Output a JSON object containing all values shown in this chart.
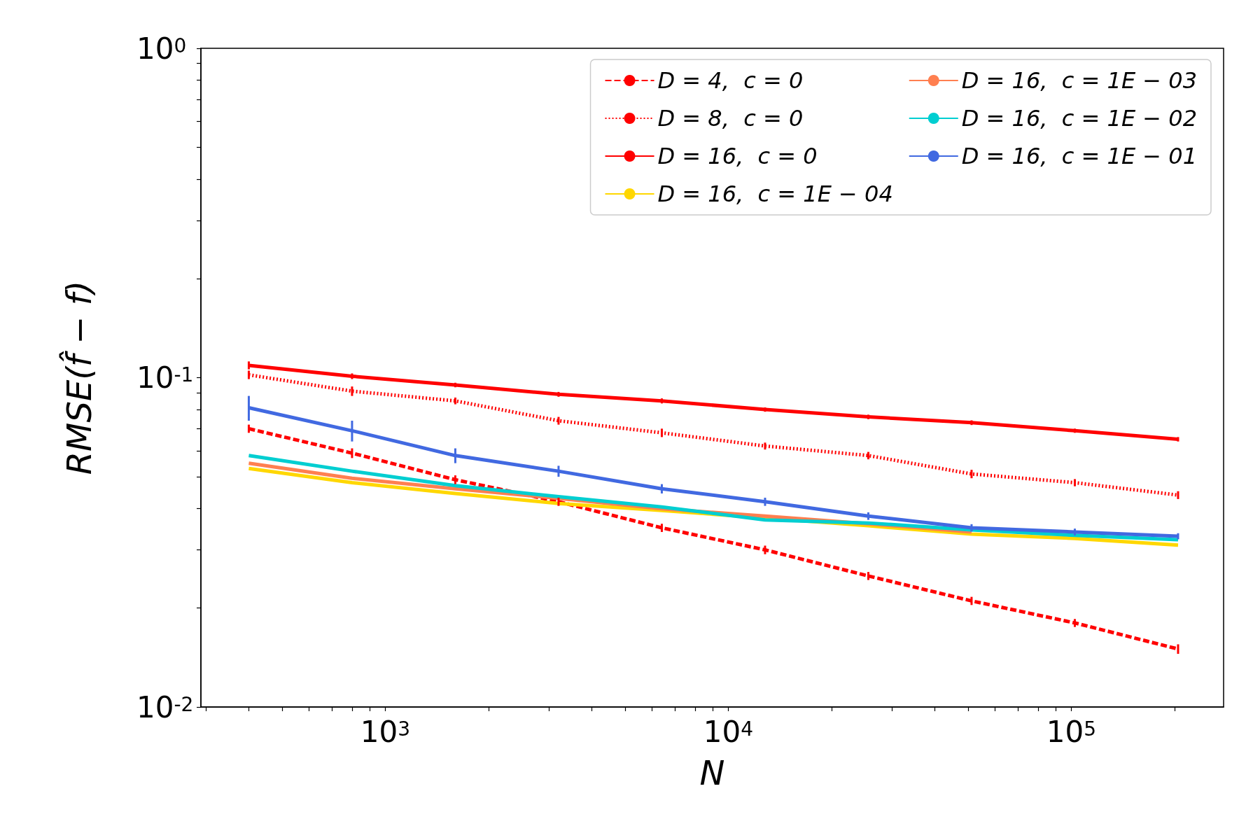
{
  "chart_data": {
    "type": "line",
    "xlabel": "N",
    "ylabel": "RMSE(f̂ − f)",
    "log": "xy",
    "grid": false,
    "legend": "top right",
    "marker": "none",
    "x": [
      400,
      800,
      1600,
      3200,
      6400,
      12800,
      25600,
      51200,
      102400,
      204800
    ],
    "xlim": [
      290,
      278000
    ],
    "ylim": [
      0.01,
      1
    ],
    "xticks": [
      {
        "value": 300,
        "label": null
      },
      {
        "value": 400,
        "label": null
      },
      {
        "value": 500,
        "label": null
      },
      {
        "value": 600,
        "label": null
      },
      {
        "value": 700,
        "label": null
      },
      {
        "value": 800,
        "label": null
      },
      {
        "value": 900,
        "label": null
      },
      {
        "value": 1000,
        "label": "10$^{3}$"
      },
      {
        "value": 2000,
        "label": null
      },
      {
        "value": 3000,
        "label": null
      },
      {
        "value": 4000,
        "label": null
      },
      {
        "value": 5000,
        "label": null
      },
      {
        "value": 6000,
        "label": null
      },
      {
        "value": 7000,
        "label": null
      },
      {
        "value": 8000,
        "label": null
      },
      {
        "value": 9000,
        "label": null
      },
      {
        "value": 10000,
        "label": "10$^{4}$"
      },
      {
        "value": 20000,
        "label": null
      },
      {
        "value": 30000,
        "label": null
      },
      {
        "value": 40000,
        "label": null
      },
      {
        "value": 50000,
        "label": null
      },
      {
        "value": 60000,
        "label": null
      },
      {
        "value": 70000,
        "label": null
      },
      {
        "value": 80000,
        "label": null
      },
      {
        "value": 90000,
        "label": null
      },
      {
        "value": 100000,
        "label": "10$^{5}$"
      },
      {
        "value": 200000,
        "label": null
      }
    ],
    "yticks": [
      {
        "value": 0.01,
        "label": "10$^{-2}$"
      },
      {
        "value": 0.02,
        "label": null
      },
      {
        "value": 0.03,
        "label": null
      },
      {
        "value": 0.04,
        "label": null
      },
      {
        "value": 0.05,
        "label": null
      },
      {
        "value": 0.06,
        "label": null
      },
      {
        "value": 0.07,
        "label": null
      },
      {
        "value": 0.08,
        "label": null
      },
      {
        "value": 0.09,
        "label": null
      },
      {
        "value": 0.1,
        "label": "10$^{-1}$"
      },
      {
        "value": 0.2,
        "label": null
      },
      {
        "value": 0.3,
        "label": null
      },
      {
        "value": 0.4,
        "label": null
      },
      {
        "value": 0.5,
        "label": null
      },
      {
        "value": 0.6,
        "label": null
      },
      {
        "value": 0.7,
        "label": null
      },
      {
        "value": 0.8,
        "label": null
      },
      {
        "value": 0.9,
        "label": null
      },
      {
        "value": 1,
        "label": "10$^{0}$"
      }
    ],
    "series": [
      {
        "name": "D = 4,  c = 0",
        "color": "#ff0000",
        "line_style": "dashed",
        "values": [
          0.07,
          0.059,
          0.049,
          0.042,
          0.035,
          0.03,
          0.025,
          0.021,
          0.018,
          0.015
        ],
        "errors": [
          0.002,
          0.002,
          0.0015,
          0.0012,
          0.001,
          0.0009,
          0.0007,
          0.0006,
          0.0005,
          0.0005
        ]
      },
      {
        "name": "D = 8,  c = 0",
        "color": "#ff0000",
        "line_style": "dotted",
        "values": [
          0.102,
          0.091,
          0.085,
          0.074,
          0.068,
          0.062,
          0.058,
          0.051,
          0.048,
          0.044
        ],
        "errors": [
          0.003,
          0.003,
          0.002,
          0.002,
          0.002,
          0.0015,
          0.0015,
          0.0015,
          0.0012,
          0.0012
        ]
      },
      {
        "name": "D = 16,  c = 0",
        "color": "#ff0000",
        "line_style": "solid",
        "values": [
          0.109,
          0.101,
          0.095,
          0.089,
          0.085,
          0.08,
          0.076,
          0.073,
          0.069,
          0.065
        ],
        "errors": [
          0.003,
          0.002,
          0.0015,
          0.0015,
          0.0015,
          0.0012,
          0.0012,
          0.0012,
          0.001,
          0.001
        ]
      },
      {
        "name": "D = 16,  c = 1E − 04",
        "color": "#ffd700",
        "line_style": "solid",
        "values": [
          0.053,
          0.048,
          0.0445,
          0.0415,
          0.0395,
          0.0375,
          0.0355,
          0.0335,
          0.0325,
          0.031
        ]
      },
      {
        "name": "D = 16,  c = 1E − 03",
        "color": "#ff7f50",
        "line_style": "solid",
        "values": [
          0.055,
          0.0495,
          0.046,
          0.043,
          0.04,
          0.038,
          0.036,
          0.034,
          null,
          null
        ]
      },
      {
        "name": "D = 16,  c = 1E − 02",
        "color": "#00ced1",
        "line_style": "solid",
        "values": [
          0.058,
          0.052,
          0.047,
          0.0435,
          0.0405,
          0.037,
          0.0362,
          0.0345,
          0.0332,
          0.0322
        ]
      },
      {
        "name": "D = 16,  c = 1E − 01",
        "color": "#4169e1",
        "line_style": "solid",
        "values": [
          0.081,
          0.069,
          0.058,
          0.052,
          0.046,
          0.042,
          0.038,
          0.035,
          0.034,
          0.033
        ],
        "errors": [
          0.007,
          0.005,
          0.003,
          0.002,
          0.0015,
          0.0012,
          0.001,
          0.0009,
          0.0008,
          0.0007
        ]
      }
    ]
  }
}
